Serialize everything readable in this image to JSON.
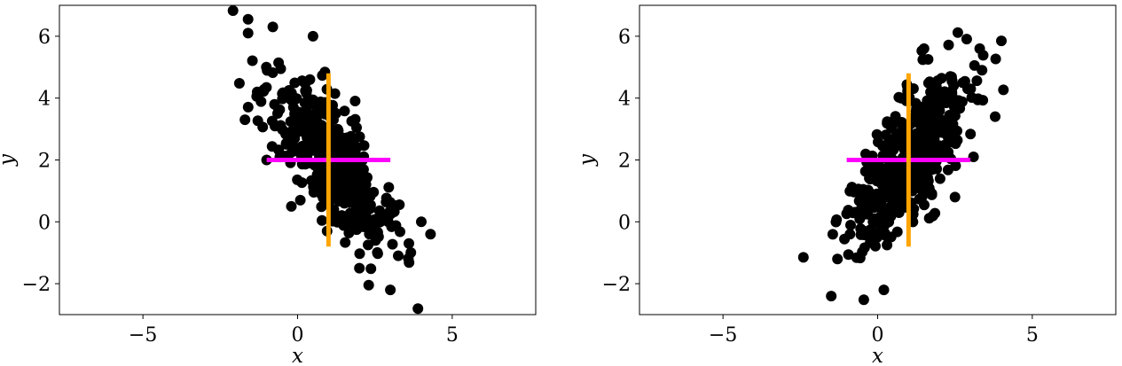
{
  "chart_data": [
    {
      "type": "scatter",
      "panel": "left",
      "xlabel": "x",
      "ylabel": "y",
      "xlim": [
        -7.7,
        7.7
      ],
      "ylim": [
        -3.0,
        7.0
      ],
      "xticks": [
        -5,
        0,
        5
      ],
      "yticks": [
        -2,
        0,
        2,
        4,
        6
      ],
      "xtick_labels": [
        "−5",
        "0",
        "5"
      ],
      "ytick_labels": [
        "−2",
        "0",
        "2",
        "4",
        "6"
      ],
      "grid": false,
      "point_color": "#000000",
      "correlation": "negative",
      "mean": [
        1.0,
        2.0
      ],
      "std": [
        1.0,
        1.4
      ],
      "rho": -0.75,
      "n_points": 500,
      "anchor_points": [
        [
          -1.6,
          6.55
        ],
        [
          -0.8,
          6.3
        ],
        [
          -1.6,
          6.1
        ],
        [
          0.5,
          6.0
        ],
        [
          4.0,
          0.0
        ],
        [
          4.3,
          -0.4
        ],
        [
          3.6,
          -0.7
        ],
        [
          2.3,
          -2.05
        ],
        [
          3.0,
          -2.2
        ],
        [
          -1.7,
          3.3
        ],
        [
          -1.0,
          2.0
        ],
        [
          -0.2,
          0.5
        ],
        [
          2.0,
          -1.5
        ]
      ],
      "lines": [
        {
          "name": "horizontal",
          "color": "#ff00ff",
          "x": [
            -1.0,
            3.0
          ],
          "y": [
            2.0,
            2.0
          ]
        },
        {
          "name": "vertical",
          "color": "#ffa500",
          "x": [
            1.0,
            1.0
          ],
          "y": [
            -0.8,
            4.8
          ]
        }
      ]
    },
    {
      "type": "scatter",
      "panel": "right",
      "xlabel": "x",
      "ylabel": "y",
      "xlim": [
        -7.7,
        7.7
      ],
      "ylim": [
        -3.0,
        7.0
      ],
      "xticks": [
        -5,
        0,
        5
      ],
      "yticks": [
        -2,
        0,
        2,
        4,
        6
      ],
      "xtick_labels": [
        "−5",
        "0",
        "5"
      ],
      "ytick_labels": [
        "−2",
        "0",
        "2",
        "4",
        "6"
      ],
      "grid": false,
      "point_color": "#000000",
      "correlation": "positive",
      "mean": [
        1.0,
        2.0
      ],
      "std": [
        1.0,
        1.4
      ],
      "rho": 0.75,
      "n_points": 500,
      "anchor_points": [
        [
          4.0,
          5.85
        ],
        [
          3.3,
          5.6
        ],
        [
          1.5,
          5.6
        ],
        [
          -2.4,
          -1.15
        ],
        [
          -1.5,
          -2.4
        ],
        [
          0.2,
          -2.2
        ],
        [
          -1.3,
          -1.2
        ],
        [
          3.1,
          2.1
        ],
        [
          3.8,
          3.4
        ],
        [
          2.5,
          0.8
        ]
      ],
      "lines": [
        {
          "name": "horizontal",
          "color": "#ff00ff",
          "x": [
            -1.0,
            3.0
          ],
          "y": [
            2.0,
            2.0
          ]
        },
        {
          "name": "vertical",
          "color": "#ffa500",
          "x": [
            1.0,
            1.0
          ],
          "y": [
            -0.8,
            4.8
          ]
        }
      ]
    }
  ]
}
